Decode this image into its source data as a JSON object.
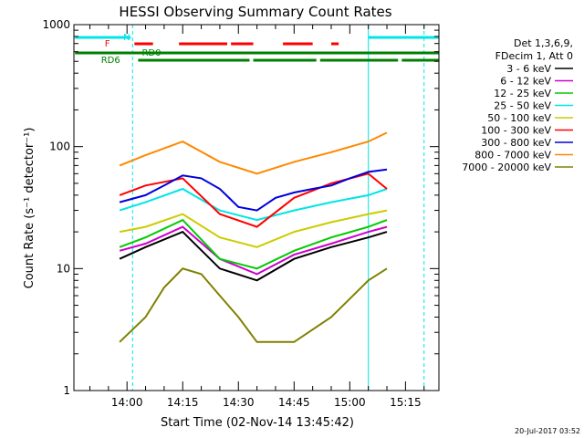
{
  "chart_data": {
    "type": "line",
    "title": "HESSI Observing Summary Count Rates",
    "xlabel": "Start Time (02-Nov-14 13:45:42)",
    "ylabel": "Count Rate (s⁻¹ detector⁻¹)",
    "yscale": "log",
    "ylim": [
      1,
      1000
    ],
    "xlim": [
      "13:45:42",
      "15:24:00"
    ],
    "x_ticks": [
      "14:00",
      "14:15",
      "14:30",
      "14:45",
      "15:00",
      "15:15"
    ],
    "y_ticks": [
      "1",
      "10",
      "100",
      "1000"
    ],
    "legend_header": [
      "Det 1,3,6,9,",
      "FDecim 1, Att 0"
    ],
    "legend_position": "right",
    "series": [
      {
        "name": "3 - 6 keV",
        "color": "#000000",
        "x": [
          "13:58",
          "14:05",
          "14:15",
          "14:25",
          "14:35",
          "14:45",
          "14:55",
          "15:05",
          "15:10"
        ],
        "y": [
          12,
          15,
          20,
          10,
          8,
          12,
          15,
          18,
          20
        ]
      },
      {
        "name": "6 - 12 keV",
        "color": "#cc00cc",
        "x": [
          "13:58",
          "14:05",
          "14:15",
          "14:25",
          "14:35",
          "14:45",
          "14:55",
          "15:05",
          "15:10"
        ],
        "y": [
          14,
          16,
          22,
          12,
          9,
          13,
          16,
          20,
          22
        ]
      },
      {
        "name": "12 - 25 keV",
        "color": "#00cc00",
        "x": [
          "13:58",
          "14:05",
          "14:15",
          "14:25",
          "14:35",
          "14:45",
          "14:55",
          "15:05",
          "15:10"
        ],
        "y": [
          15,
          18,
          25,
          12,
          10,
          14,
          18,
          22,
          25
        ]
      },
      {
        "name": "25 - 50 keV",
        "color": "#00e5e5",
        "x": [
          "13:58",
          "14:05",
          "14:15",
          "14:25",
          "14:35",
          "14:45",
          "14:55",
          "15:05",
          "15:10"
        ],
        "y": [
          30,
          35,
          45,
          30,
          25,
          30,
          35,
          40,
          45
        ]
      },
      {
        "name": "50 - 100 keV",
        "color": "#cccc00",
        "x": [
          "13:58",
          "14:05",
          "14:15",
          "14:25",
          "14:35",
          "14:45",
          "14:55",
          "15:05",
          "15:10"
        ],
        "y": [
          20,
          22,
          28,
          18,
          15,
          20,
          24,
          28,
          30
        ]
      },
      {
        "name": "100 - 300 keV",
        "color": "#ff0000",
        "x": [
          "13:58",
          "14:05",
          "14:15",
          "14:25",
          "14:35",
          "14:45",
          "14:55",
          "15:05",
          "15:10"
        ],
        "y": [
          40,
          48,
          55,
          28,
          22,
          38,
          50,
          60,
          45
        ]
      },
      {
        "name": "300 - 800 keV",
        "color": "#0000dd",
        "x": [
          "13:58",
          "14:05",
          "14:10",
          "14:15",
          "14:20",
          "14:25",
          "14:30",
          "14:35",
          "14:40",
          "14:45",
          "14:50",
          "14:55",
          "15:00",
          "15:05",
          "15:10"
        ],
        "y": [
          35,
          40,
          48,
          58,
          55,
          45,
          32,
          30,
          38,
          42,
          45,
          48,
          55,
          62,
          65
        ]
      },
      {
        "name": "800 - 7000 keV",
        "color": "#ff8800",
        "x": [
          "13:58",
          "14:05",
          "14:15",
          "14:25",
          "14:35",
          "14:45",
          "14:55",
          "15:05",
          "15:10"
        ],
        "y": [
          70,
          85,
          110,
          75,
          60,
          75,
          90,
          110,
          130
        ]
      },
      {
        "name": "7000 - 20000 keV",
        "color": "#808000",
        "x": [
          "13:58",
          "14:05",
          "14:10",
          "14:15",
          "14:20",
          "14:25",
          "14:30",
          "14:35",
          "14:45",
          "14:55",
          "15:05",
          "15:10"
        ],
        "y": [
          2.5,
          4,
          7,
          10,
          9,
          6,
          4,
          2.5,
          2.5,
          4,
          8,
          10
        ]
      }
    ],
    "annotations": {
      "vertical_markers": [
        "13:45:42",
        "14:01:30",
        "15:05:00",
        "15:20:00"
      ],
      "flags": [
        {
          "label": "N",
          "color": "#00e5e5",
          "segments": [
            [
              "13:46",
              "14:01"
            ],
            [
              "15:05",
              "15:24"
            ]
          ]
        },
        {
          "label": "F",
          "color": "#ff0000",
          "segments": [
            [
              "14:02",
              "14:07"
            ],
            [
              "14:14",
              "14:27"
            ],
            [
              "14:28",
              "14:34"
            ],
            [
              "14:42",
              "14:50"
            ],
            [
              "14:55",
              "14:57"
            ]
          ]
        },
        {
          "label": "RD0",
          "color": "#008000",
          "segments": [
            [
              "13:46",
              "15:24"
            ]
          ]
        },
        {
          "label": "RD6",
          "color": "#008000",
          "segments": [
            [
              "14:03",
              "14:33"
            ],
            [
              "14:34",
              "14:51"
            ],
            [
              "14:52",
              "15:13"
            ],
            [
              "15:14",
              "15:24"
            ]
          ]
        }
      ]
    }
  },
  "timestamp": "20-Jul-2017 03:52"
}
